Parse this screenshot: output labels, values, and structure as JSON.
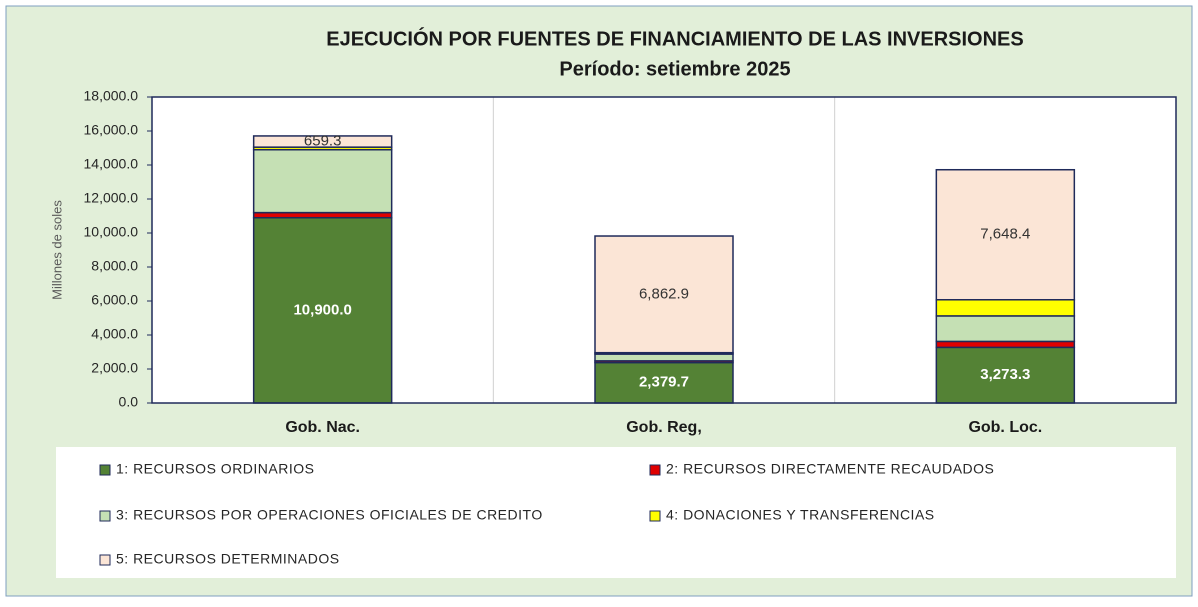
{
  "chart_data": {
    "type": "stacked_bar",
    "title": "EJECUCIÓN POR FUENTES DE FINANCIAMIENTO DE LAS INVERSIONES",
    "subtitle": "Período:  setiembre  2025",
    "y_axis_label": "Millones de soles",
    "categories": [
      "Gob. Nac.",
      "Gob. Reg,",
      "Gob. Loc."
    ],
    "series": [
      {
        "name": "1: RECURSOS ORDINARIOS",
        "color": "#548235",
        "values": [
          10900.0,
          2379.7,
          3273.3
        ],
        "value_labels": [
          "10,900.0",
          "2,379.7",
          "3,273.3"
        ]
      },
      {
        "name": "2: RECURSOS DIRECTAMENTE RECAUDADOS",
        "color": "#e00000",
        "values": [
          300,
          100,
          350
        ],
        "value_labels": [
          null,
          null,
          null
        ]
      },
      {
        "name": "3: RECURSOS POR OPERACIONES OFICIALES DE CREDITO",
        "color": "#c5e0b4",
        "values": [
          3700,
          400,
          1500
        ],
        "value_labels": [
          null,
          null,
          null
        ]
      },
      {
        "name": "4: DONACIONES Y TRANSFERENCIAS",
        "color": "#ffff00",
        "values": [
          150,
          80,
          950
        ],
        "value_labels": [
          null,
          null,
          null
        ]
      },
      {
        "name": "5: RECURSOS DETERMINADOS",
        "color": "#fbe5d6",
        "values": [
          659.3,
          6862.9,
          7648.4
        ],
        "value_labels": [
          "659.3",
          "6,862.9",
          "7,648.4"
        ]
      }
    ],
    "ylim": [
      0,
      18000
    ],
    "yticks": [
      {
        "value": 0,
        "label": "0.0"
      },
      {
        "value": 2000,
        "label": "2,000.0"
      },
      {
        "value": 4000,
        "label": "4,000.0"
      },
      {
        "value": 6000,
        "label": "6,000.0"
      },
      {
        "value": 8000,
        "label": "8,000.0"
      },
      {
        "value": 10000,
        "label": "10,000.0"
      },
      {
        "value": 12000,
        "label": "12,000.0"
      },
      {
        "value": 14000,
        "label": "14,000.0"
      },
      {
        "value": 16000,
        "label": "16,000.0"
      },
      {
        "value": 18000,
        "label": "18,000.0"
      }
    ],
    "legend": "bottom"
  }
}
